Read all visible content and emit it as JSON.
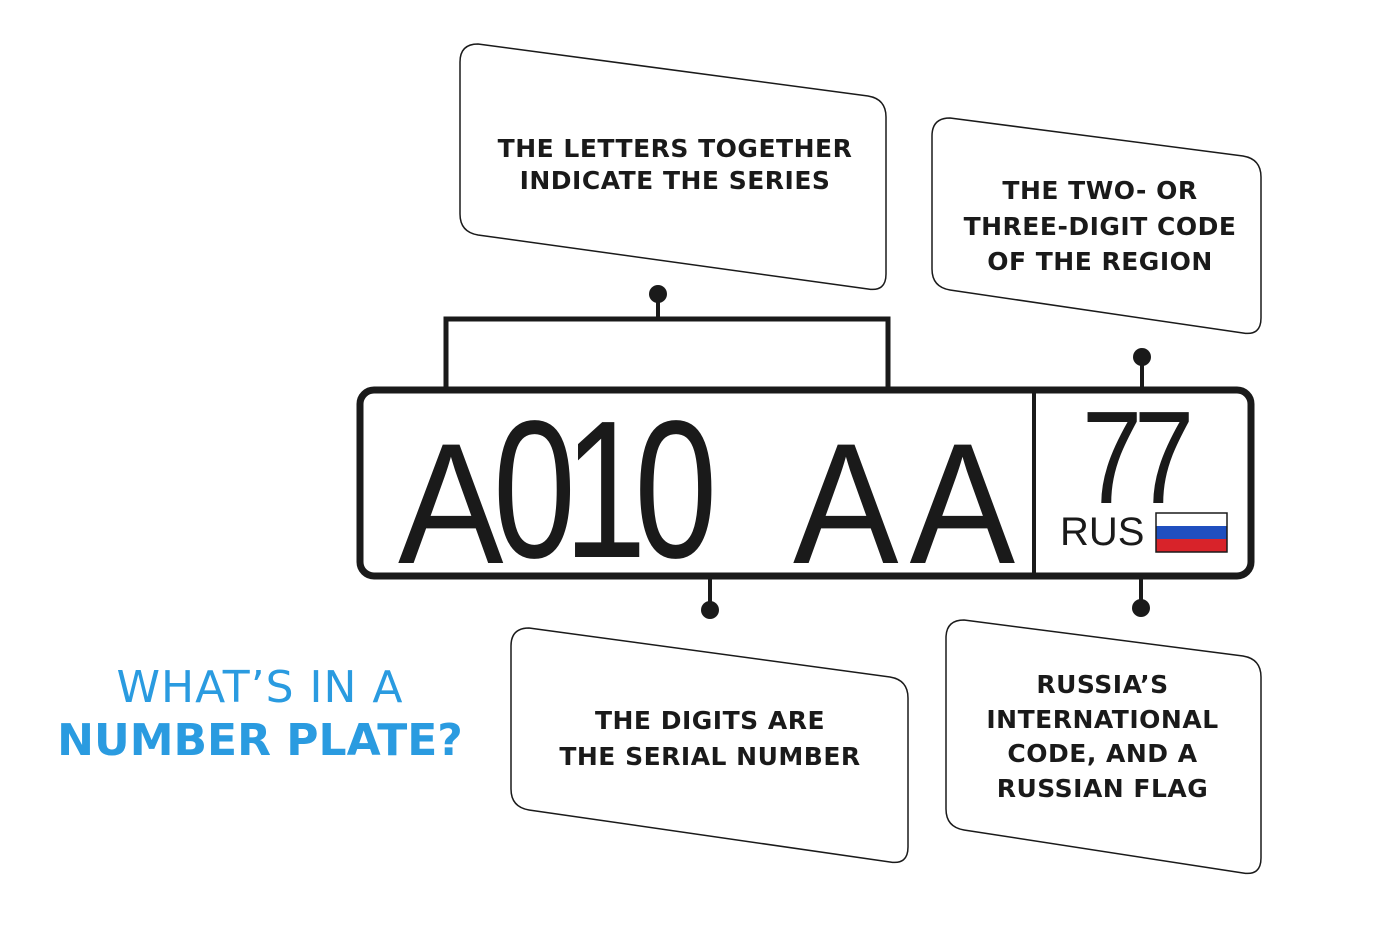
{
  "title": {
    "line1": "WHAT’S IN A",
    "line2": "NUMBER PLATE?"
  },
  "plate": {
    "first_letter": "A",
    "digits": "010",
    "last_letters": "AA",
    "region_code": "77",
    "country_code": "RUS",
    "flag_colors": [
      "#ffffff",
      "#1f4fbf",
      "#d8232a"
    ]
  },
  "callouts": {
    "series": [
      "THE LETTERS TOGETHER",
      "INDICATE THE SERIES"
    ],
    "region": [
      "THE TWO- OR",
      "THREE-DIGIT CODE",
      "OF THE REGION"
    ],
    "serial": [
      "THE DIGITS ARE",
      "THE SERIAL NUMBER"
    ],
    "country": [
      "RUSSIA’S",
      "INTERNATIONAL",
      "CODE, AND A",
      "RUSSIAN FLAG"
    ]
  },
  "colors": {
    "accent": "#2a9be0",
    "ink": "#1a1a1a"
  }
}
